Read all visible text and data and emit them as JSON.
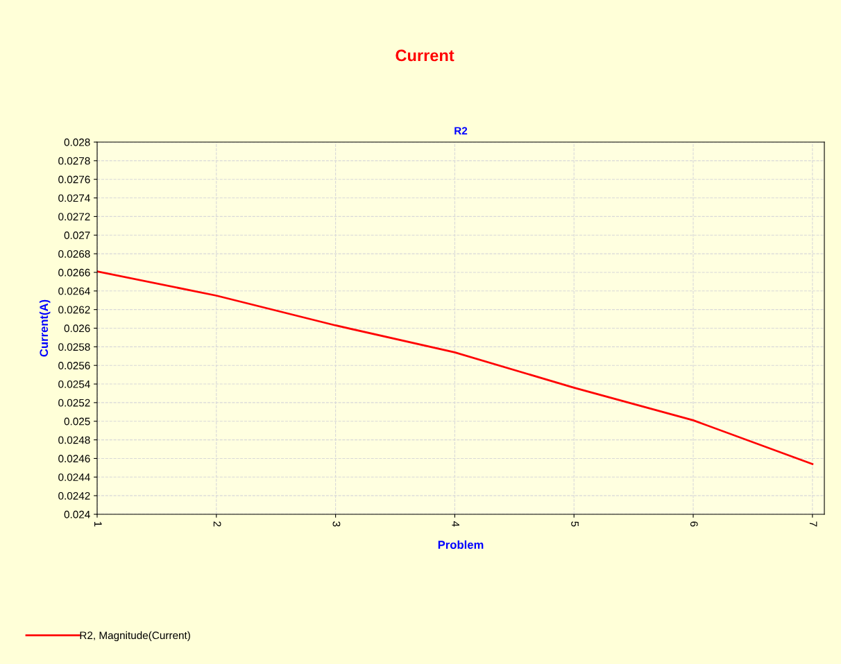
{
  "chart_data": {
    "type": "line",
    "title": "Current",
    "subtitle": "R2",
    "xlabel": "Problem",
    "ylabel": "Current(A)",
    "x": [
      1,
      2,
      3,
      4,
      5,
      6,
      7
    ],
    "series": [
      {
        "name": "R2, Magnitude(Current)",
        "color": "#ff0000",
        "values": [
          0.02661,
          0.02635,
          0.02603,
          0.02574,
          0.02536,
          0.02501,
          0.02454
        ]
      }
    ],
    "xlim": [
      1,
      7.1
    ],
    "xticks": [
      1,
      2,
      3,
      4,
      5,
      6,
      7
    ],
    "ylim": [
      0.024,
      0.028
    ],
    "yticks": [
      0.024,
      0.0242,
      0.0244,
      0.0246,
      0.0248,
      0.025,
      0.0252,
      0.0254,
      0.0256,
      0.0258,
      0.026,
      0.0262,
      0.0264,
      0.0266,
      0.0268,
      0.027,
      0.0272,
      0.0274,
      0.0276,
      0.0278,
      0.028
    ],
    "grid": true,
    "legend": "bottom left",
    "marker": "none",
    "line_style": "solid"
  }
}
